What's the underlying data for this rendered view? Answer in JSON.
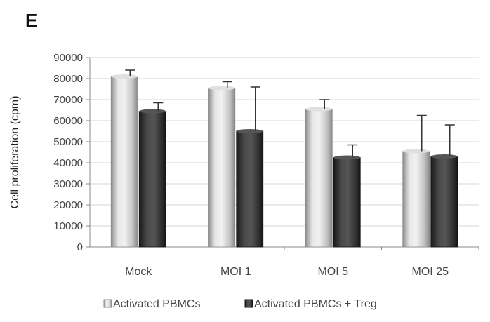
{
  "panel_label": "E",
  "chart_data": {
    "type": "bar",
    "title": "",
    "xlabel": "",
    "ylabel": "Cell proliferation (cpm)",
    "ylim": [
      0,
      90000
    ],
    "yticks": [
      0,
      10000,
      20000,
      30000,
      40000,
      50000,
      60000,
      70000,
      80000,
      90000
    ],
    "categories": [
      "Mock",
      "MOI 1",
      "MOI 5",
      "MOI 25"
    ],
    "series": [
      {
        "name": "Activated PBMCs",
        "values": [
          81000,
          75500,
          65500,
          45500
        ],
        "error": [
          3000,
          3000,
          4500,
          17000
        ],
        "color": "#bdbdbd"
      },
      {
        "name": "Activated PBMCs + Treg",
        "values": [
          64500,
          55000,
          42500,
          43000
        ],
        "error": [
          4000,
          21000,
          6000,
          15000
        ],
        "color": "#3a3a3a"
      }
    ],
    "grid": true,
    "legend_position": "bottom"
  }
}
